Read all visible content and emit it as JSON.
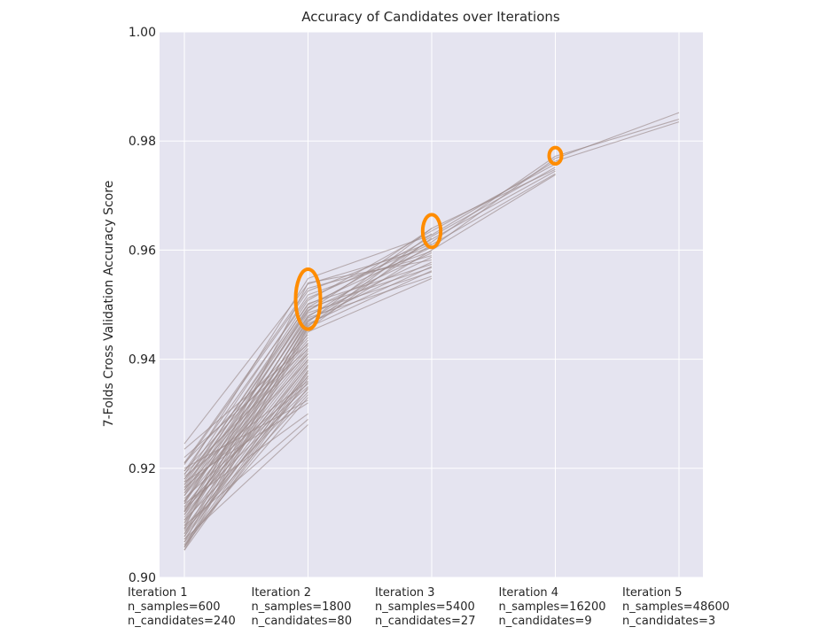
{
  "chart_data": {
    "type": "line",
    "title": "Accuracy of Candidates over Iterations",
    "xlabel": "",
    "ylabel": "7-Folds Cross Validation Accuracy Score",
    "ylim": [
      0.9,
      1.0
    ],
    "yticks": [
      "0.90",
      "0.92",
      "0.94",
      "0.96",
      "0.98",
      "1.00"
    ],
    "grid": true,
    "legend": "none",
    "iterations": [
      {
        "label": "Iteration 1",
        "samples": "n_samples=600",
        "candidates": "n_candidates=240"
      },
      {
        "label": "Iteration 2",
        "samples": "n_samples=1800",
        "candidates": "n_candidates=80"
      },
      {
        "label": "Iteration 3",
        "samples": "n_samples=5400",
        "candidates": "n_candidates=27"
      },
      {
        "label": "Iteration 4",
        "samples": "n_samples=16200",
        "candidates": "n_candidates=9"
      },
      {
        "label": "Iteration 5",
        "samples": "n_samples=48600",
        "candidates": "n_candidates=3"
      }
    ],
    "line_color": "#9b8a8a",
    "highlight_color": "#ff8c00",
    "top_scores": [
      {
        "iteration": 2,
        "low": 0.9455,
        "high": 0.9565
      },
      {
        "iteration": 3,
        "low": 0.9605,
        "high": 0.9665
      },
      {
        "iteration": 4,
        "low": 0.9758,
        "high": 0.9788
      }
    ],
    "series": [
      {
        "values": [
          0.9245,
          0.9538,
          0.9605,
          0.9768,
          0.9852
        ]
      },
      {
        "values": [
          0.9207,
          0.9525,
          0.9615,
          0.9772,
          0.984
        ]
      },
      {
        "values": [
          0.9188,
          0.9548,
          0.9628,
          0.9763,
          0.9835
        ]
      },
      {
        "values": [
          0.917,
          0.9508,
          0.9635,
          0.9758
        ]
      },
      {
        "values": [
          0.9165,
          0.9495,
          0.9625,
          0.9752
        ]
      },
      {
        "values": [
          0.915,
          0.9488,
          0.964,
          0.9748
        ]
      },
      {
        "values": [
          0.9138,
          0.9478,
          0.962,
          0.9745
        ]
      },
      {
        "values": [
          0.9122,
          0.947,
          0.961,
          0.974
        ]
      },
      {
        "values": [
          0.9105,
          0.9462,
          0.96,
          0.9738
        ]
      },
      {
        "values": [
          0.909,
          0.954,
          0.9582
        ]
      },
      {
        "values": [
          0.921,
          0.953,
          0.959
        ]
      },
      {
        "values": [
          0.918,
          0.9518,
          0.9598
        ]
      },
      {
        "values": [
          0.916,
          0.9502,
          0.9574
        ]
      },
      {
        "values": [
          0.914,
          0.9494,
          0.9568
        ]
      },
      {
        "values": [
          0.912,
          0.9485,
          0.956
        ]
      },
      {
        "values": [
          0.91,
          0.9476,
          0.9552
        ]
      },
      {
        "values": [
          0.908,
          0.9468,
          0.964
        ]
      },
      {
        "values": [
          0.9065,
          0.946,
          0.963
        ]
      },
      {
        "values": [
          0.9055,
          0.9455,
          0.9622
        ]
      },
      {
        "values": [
          0.9195,
          0.9512,
          0.9612
        ]
      },
      {
        "values": [
          0.9175,
          0.95,
          0.9605
        ]
      },
      {
        "values": [
          0.9155,
          0.949,
          0.9595
        ]
      },
      {
        "values": [
          0.9135,
          0.948,
          0.9587
        ]
      },
      {
        "values": [
          0.9115,
          0.9472,
          0.9578
        ]
      },
      {
        "values": [
          0.9095,
          0.9465,
          0.957
        ]
      },
      {
        "values": [
          0.9075,
          0.9458,
          0.9562
        ]
      },
      {
        "values": [
          0.905,
          0.945,
          0.9548
        ]
      },
      {
        "values": [
          0.921,
          0.9445
        ]
      },
      {
        "values": [
          0.9195,
          0.944
        ]
      },
      {
        "values": [
          0.918,
          0.9435
        ]
      },
      {
        "values": [
          0.917,
          0.943
        ]
      },
      {
        "values": [
          0.916,
          0.9425
        ]
      },
      {
        "values": [
          0.915,
          0.942
        ]
      },
      {
        "values": [
          0.914,
          0.9415
        ]
      },
      {
        "values": [
          0.913,
          0.941
        ]
      },
      {
        "values": [
          0.912,
          0.9405
        ]
      },
      {
        "values": [
          0.911,
          0.94
        ]
      },
      {
        "values": [
          0.91,
          0.9395
        ]
      },
      {
        "values": [
          0.909,
          0.939
        ]
      },
      {
        "values": [
          0.908,
          0.9385
        ]
      },
      {
        "values": [
          0.907,
          0.938
        ]
      },
      {
        "values": [
          0.906,
          0.9375
        ]
      },
      {
        "values": [
          0.9055,
          0.937
        ]
      },
      {
        "values": [
          0.905,
          0.9365
        ]
      },
      {
        "values": [
          0.9185,
          0.936
        ]
      },
      {
        "values": [
          0.9165,
          0.9355
        ]
      },
      {
        "values": [
          0.9145,
          0.935
        ]
      },
      {
        "values": [
          0.9125,
          0.9345
        ]
      },
      {
        "values": [
          0.9105,
          0.934
        ]
      },
      {
        "values": [
          0.9085,
          0.9335
        ]
      },
      {
        "values": [
          0.9065,
          0.933
        ]
      },
      {
        "values": [
          0.92,
          0.9325
        ]
      },
      {
        "values": [
          0.9175,
          0.932
        ]
      },
      {
        "values": [
          0.9135,
          0.93
        ]
      },
      {
        "values": [
          0.9095,
          0.929
        ]
      },
      {
        "values": [
          0.907,
          0.928
        ]
      },
      {
        "values": [
          0.919,
          0.941
        ]
      },
      {
        "values": [
          0.9155,
          0.9398
        ]
      },
      {
        "values": [
          0.9115,
          0.9388
        ]
      },
      {
        "values": [
          0.9075,
          0.9378
        ]
      },
      {
        "values": [
          0.9235,
          0.9428
        ]
      },
      {
        "values": [
          0.922,
          0.9418
        ]
      },
      {
        "values": [
          0.9128,
          0.9368
        ]
      },
      {
        "values": [
          0.9088,
          0.9358
        ]
      },
      {
        "values": [
          0.9058,
          0.9348
        ]
      }
    ]
  }
}
